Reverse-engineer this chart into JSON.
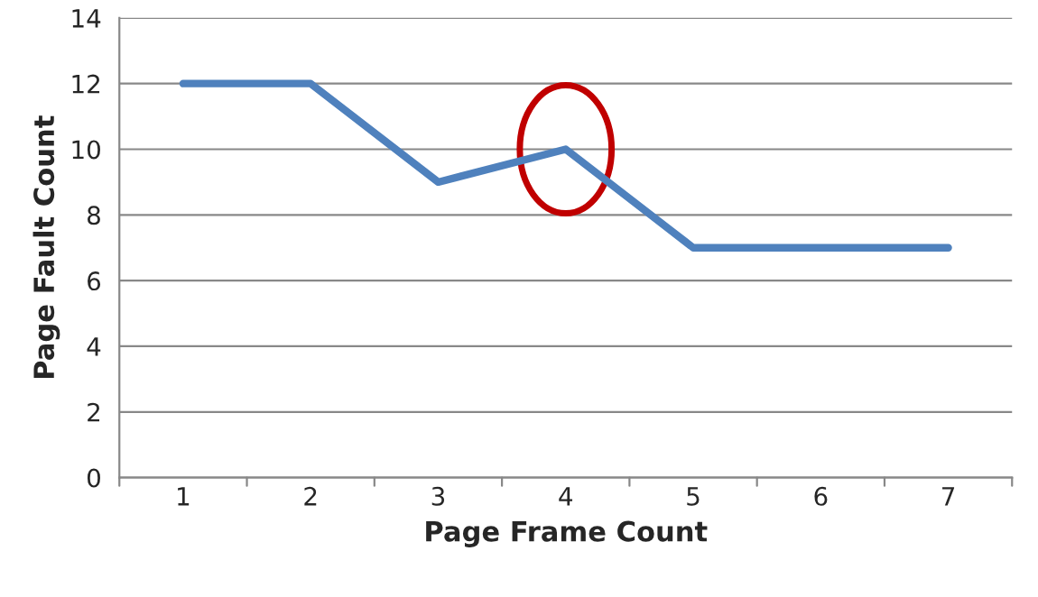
{
  "chart_data": {
    "type": "line",
    "xlabel": "Page Frame Count",
    "ylabel": "Page Fault Count",
    "categories": [
      "1",
      "2",
      "3",
      "4",
      "5",
      "6",
      "7"
    ],
    "series": [
      {
        "color": "#4f81bd",
        "values": [
          12,
          12,
          9,
          10,
          7,
          7,
          7
        ]
      }
    ],
    "ylim": [
      0,
      14
    ],
    "yticks": [
      0,
      2,
      4,
      6,
      8,
      10,
      12,
      14
    ],
    "grid": "y",
    "legend": false,
    "marker": "none",
    "line_style": "solid"
  }
}
